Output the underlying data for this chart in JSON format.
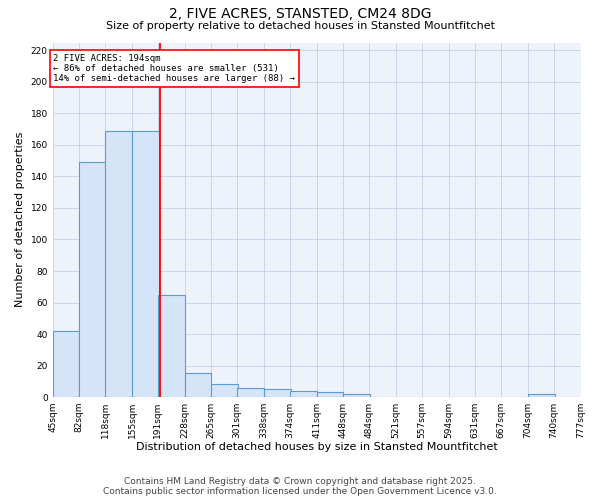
{
  "title": "2, FIVE ACRES, STANSTED, CM24 8DG",
  "subtitle": "Size of property relative to detached houses in Stansted Mountfitchet",
  "xlabel": "Distribution of detached houses by size in Stansted Mountfitchet",
  "ylabel": "Number of detached properties",
  "bar_left_edges": [
    45,
    82,
    118,
    155,
    191,
    228,
    265,
    301,
    338,
    374,
    411,
    448,
    484,
    521,
    557,
    594,
    631,
    667,
    704,
    740
  ],
  "bar_heights": [
    42,
    149,
    169,
    169,
    65,
    15,
    8,
    6,
    5,
    4,
    3,
    2,
    0,
    0,
    0,
    0,
    0,
    0,
    2,
    0
  ],
  "bin_width": 37,
  "bar_facecolor": "#d6e4f7",
  "bar_edgecolor": "#5b9bd5",
  "vline_x": 194,
  "vline_color": "red",
  "annotation_text": "2 FIVE ACRES: 194sqm\n← 86% of detached houses are smaller (531)\n14% of semi-detached houses are larger (88) →",
  "annotation_box_edgecolor": "red",
  "annotation_box_facecolor": "white",
  "ylim": [
    0,
    225
  ],
  "yticks": [
    0,
    20,
    40,
    60,
    80,
    100,
    120,
    140,
    160,
    180,
    200,
    220
  ],
  "tick_labels": [
    "45sqm",
    "82sqm",
    "118sqm",
    "155sqm",
    "191sqm",
    "228sqm",
    "265sqm",
    "301sqm",
    "338sqm",
    "374sqm",
    "411sqm",
    "448sqm",
    "484sqm",
    "521sqm",
    "557sqm",
    "594sqm",
    "631sqm",
    "667sqm",
    "704sqm",
    "740sqm",
    "777sqm"
  ],
  "background_color": "#eef2fb",
  "grid_color": "#c8d0e8",
  "footer_text": "Contains HM Land Registry data © Crown copyright and database right 2025.\nContains public sector information licensed under the Open Government Licence v3.0.",
  "title_fontsize": 10,
  "subtitle_fontsize": 8,
  "xlabel_fontsize": 8,
  "ylabel_fontsize": 8,
  "tick_fontsize": 6.5,
  "footer_fontsize": 6.5
}
